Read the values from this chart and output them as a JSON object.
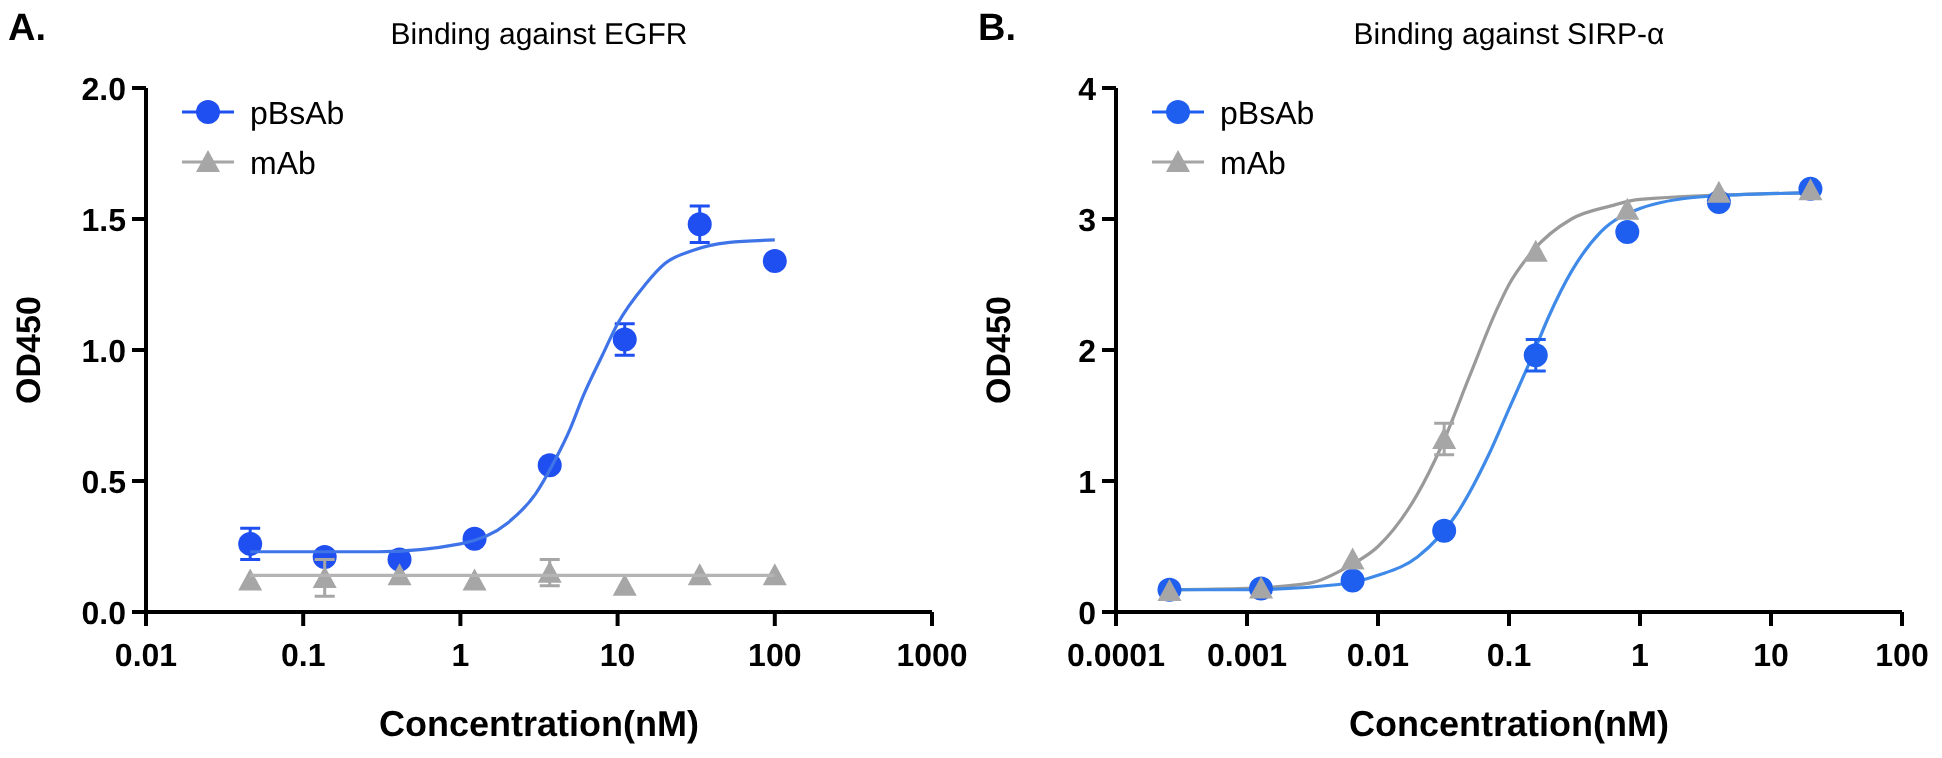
{
  "chart_data": [
    {
      "type": "scatter",
      "title": "Binding against EGFR",
      "xlabel": "Concentration(nM)",
      "ylabel": "OD450",
      "annotations": [
        "A."
      ],
      "log": "x",
      "legend": "top left",
      "xlim": [
        0.01,
        1000
      ],
      "xticks": [
        0.01,
        0.1,
        1,
        10,
        100,
        1000
      ],
      "ylim": [
        0,
        2
      ],
      "yticks": [
        {
          "value": 0,
          "label": "0.0"
        },
        {
          "value": 0.5,
          "label": "0.5"
        },
        {
          "value": 1,
          "label": "1.0"
        },
        {
          "value": 1.5,
          "label": "1.5"
        },
        {
          "value": 2,
          "label": "2.0"
        }
      ],
      "series": [
        {
          "name": "pBsAb",
          "marker": "circle",
          "color": "#1f4ff0",
          "x": [
            0.046,
            0.137,
            0.41,
            1.23,
            3.7,
            11.1,
            33.3,
            100
          ],
          "values": [
            0.26,
            0.21,
            0.2,
            0.28,
            0.56,
            1.04,
            1.48,
            1.34
          ],
          "errors": [
            0.06,
            null,
            null,
            null,
            null,
            0.06,
            0.07,
            null
          ]
        },
        {
          "name": "mAb",
          "marker": "triangle",
          "color": "#a6a6a6",
          "x": [
            0.046,
            0.137,
            0.41,
            1.23,
            3.7,
            11.1,
            33.3,
            100
          ],
          "values": [
            0.12,
            0.13,
            0.14,
            0.12,
            0.15,
            0.1,
            0.14,
            0.14
          ],
          "errors": [
            null,
            0.07,
            null,
            null,
            0.05,
            null,
            null,
            null
          ]
        },
        {
          "type": "line",
          "marker": "none",
          "color": "#3f74e8",
          "x": [
            0.046,
            0.3,
            1,
            2,
            3,
            4,
            5,
            6,
            8,
            10,
            15,
            20,
            30,
            50,
            100
          ],
          "values": [
            0.23,
            0.23,
            0.26,
            0.34,
            0.45,
            0.58,
            0.7,
            0.82,
            0.98,
            1.1,
            1.25,
            1.33,
            1.38,
            1.41,
            1.42
          ]
        },
        {
          "type": "line",
          "marker": "none",
          "color": "#b4b4b4",
          "x": [
            0.046,
            100
          ],
          "values": [
            0.14,
            0.14
          ]
        }
      ]
    },
    {
      "type": "scatter",
      "title": "Binding against SIRP-α",
      "xlabel": "Concentration(nM)",
      "ylabel": "OD450",
      "annotations": [
        "B."
      ],
      "log": "x",
      "legend": "top left",
      "xlim": [
        0.0001,
        100
      ],
      "xticks": [
        0.0001,
        0.001,
        0.01,
        0.1,
        1,
        10,
        100
      ],
      "ylim": [
        0,
        4
      ],
      "yticks": [
        0,
        1,
        2,
        3,
        4
      ],
      "series": [
        {
          "type": "line",
          "marker": "none",
          "color": "#9a9a9a",
          "x": [
            0.000256,
            0.001,
            0.003,
            0.006,
            0.01,
            0.02,
            0.03,
            0.05,
            0.08,
            0.1,
            0.15,
            0.3,
            0.6,
            1,
            20
          ],
          "values": [
            0.17,
            0.18,
            0.22,
            0.35,
            0.5,
            0.9,
            1.25,
            1.8,
            2.3,
            2.5,
            2.75,
            3.0,
            3.1,
            3.15,
            3.2
          ]
        },
        {
          "type": "line",
          "marker": "none",
          "color": "#3f8ae8",
          "x": [
            0.000256,
            0.001,
            0.005,
            0.01,
            0.02,
            0.04,
            0.07,
            0.1,
            0.15,
            0.2,
            0.3,
            0.5,
            1,
            3,
            20
          ],
          "values": [
            0.17,
            0.17,
            0.21,
            0.28,
            0.42,
            0.75,
            1.2,
            1.55,
            1.95,
            2.25,
            2.6,
            2.9,
            3.08,
            3.17,
            3.2
          ]
        },
        {
          "name": "pBsAb",
          "marker": "circle",
          "color": "#1f5ff0",
          "x": [
            0.000256,
            0.00128,
            0.0064,
            0.032,
            0.16,
            0.8,
            4,
            20
          ],
          "values": [
            0.17,
            0.18,
            0.24,
            0.62,
            1.96,
            2.9,
            3.13,
            3.23
          ],
          "errors": [
            null,
            null,
            null,
            null,
            0.12,
            null,
            null,
            null
          ]
        },
        {
          "name": "mAb",
          "marker": "triangle",
          "color": "#a6a6a6",
          "x": [
            0.000256,
            0.00128,
            0.0064,
            0.032,
            0.16,
            0.8,
            4,
            20
          ],
          "values": [
            0.16,
            0.18,
            0.4,
            1.32,
            2.75,
            3.07,
            3.2,
            3.22
          ],
          "errors": [
            null,
            null,
            null,
            0.12,
            null,
            null,
            null,
            null
          ]
        }
      ]
    }
  ]
}
